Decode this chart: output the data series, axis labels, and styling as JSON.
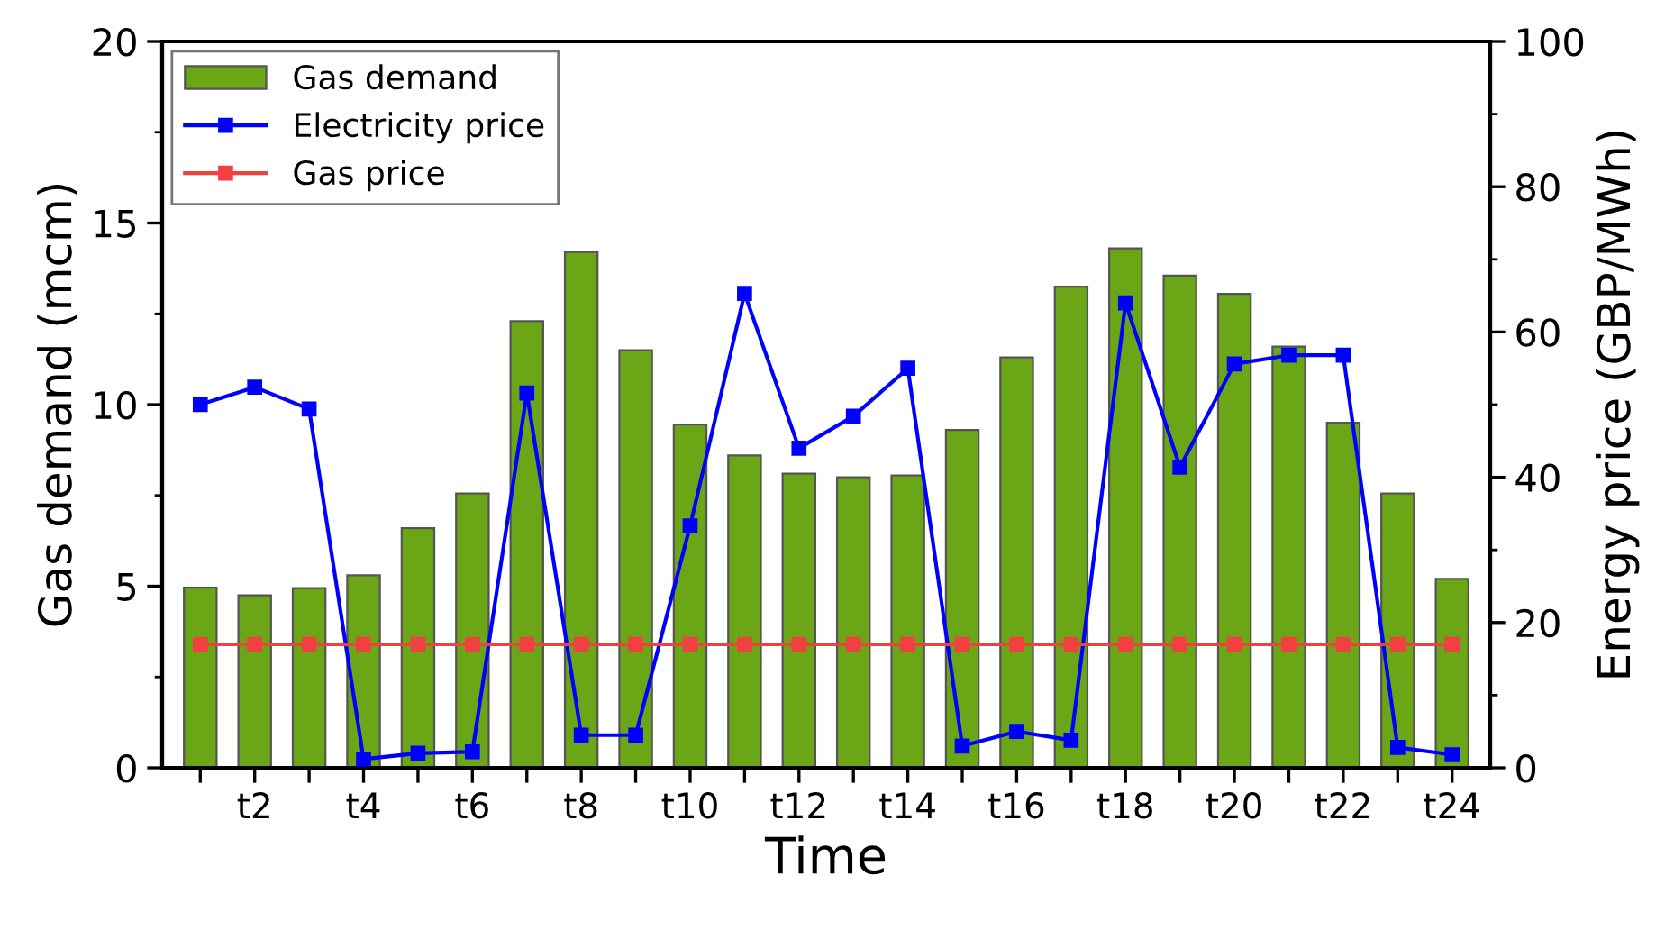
{
  "chart_data": {
    "type": "bar",
    "xlabel": "Time",
    "ylabel": "Gas demand (mcm)",
    "y2label": "Energy price (GBP/MWh)",
    "categories": [
      null,
      "t2",
      null,
      "t4",
      null,
      "t6",
      null,
      "t8",
      null,
      "t10",
      null,
      "t12",
      null,
      "t14",
      null,
      "t16",
      null,
      "t18",
      null,
      "t20",
      null,
      "t22",
      null,
      "t24"
    ],
    "series": [
      {
        "name": "Gas demand",
        "color": "#6aa616",
        "values": [
          4.96,
          4.75,
          4.95,
          5.3,
          6.6,
          7.55,
          12.3,
          14.2,
          11.5,
          9.45,
          8.6,
          8.1,
          8.0,
          8.05,
          9.3,
          11.3,
          13.25,
          14.3,
          13.55,
          13.05,
          11.6,
          9.5,
          7.55,
          5.2
        ]
      },
      {
        "name": "Electricity price",
        "type": "line",
        "axis": "y2",
        "color": "#0000ff",
        "marker": "square",
        "line_style": "solid",
        "values": [
          50,
          52.4,
          49.4,
          1.2,
          2,
          2.2,
          51.6,
          4.5,
          4.5,
          33.3,
          65.3,
          44,
          48.4,
          55,
          3,
          5,
          3.8,
          64,
          41.4,
          55.6,
          56.8,
          56.8,
          2.8,
          1.8
        ]
      },
      {
        "name": "Gas price",
        "type": "line",
        "axis": "y2",
        "color": "#f04040",
        "marker": "square",
        "line_style": "solid",
        "values": [
          17,
          17,
          17,
          17,
          17,
          17,
          17,
          17,
          17,
          17,
          17,
          17,
          17,
          17,
          17,
          17,
          17,
          17,
          17,
          17,
          17,
          17,
          17,
          17
        ]
      }
    ],
    "ylim": [
      0,
      20
    ],
    "yticks": [
      0,
      5,
      10,
      15,
      20
    ],
    "y2lim": [
      0,
      100
    ],
    "y2ticks": [
      0,
      20,
      40,
      60,
      80,
      100
    ],
    "grid": false,
    "legend": "top left"
  }
}
